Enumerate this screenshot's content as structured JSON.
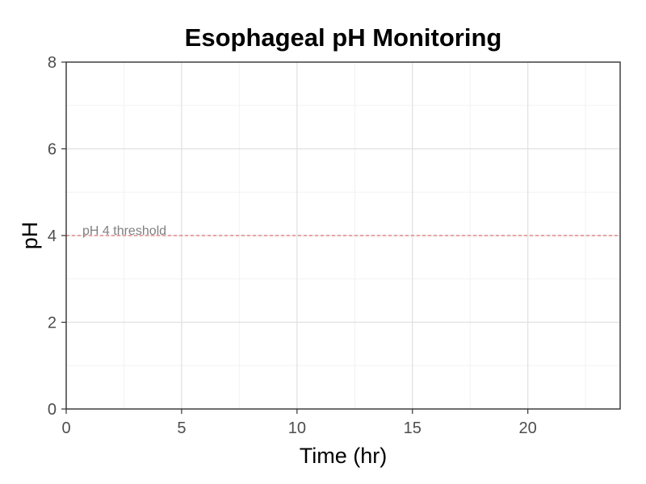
{
  "chart_data": {
    "type": "line",
    "title": "Esophageal pH Monitoring",
    "xlabel": "Time (hr)",
    "ylabel": "pH",
    "xlim": [
      0,
      24
    ],
    "ylim": [
      0,
      8
    ],
    "x_ticks": [
      0,
      5,
      10,
      15,
      20
    ],
    "y_ticks": [
      0,
      2,
      4,
      6,
      8
    ],
    "x_minor_ticks": [
      2.5,
      7.5,
      12.5,
      17.5,
      22.5
    ],
    "y_minor_ticks": [
      1,
      3,
      5,
      7
    ],
    "grid": true,
    "series": [],
    "reference_lines": [
      {
        "axis": "y",
        "value": 4,
        "color": "#d9534f",
        "style": "dashed"
      }
    ],
    "annotations": [
      {
        "text": "pH 4 threshold",
        "x": 0.7,
        "y": 4,
        "color": "#808080"
      }
    ]
  }
}
